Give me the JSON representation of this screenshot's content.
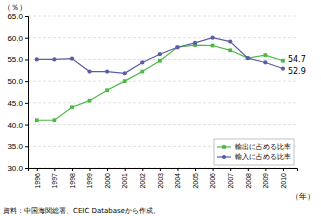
{
  "chart_data": {
    "type": "line",
    "x": [
      1996,
      1997,
      1998,
      1999,
      2000,
      2001,
      2002,
      2003,
      2004,
      2005,
      2006,
      2007,
      2008,
      2009,
      2010
    ],
    "series": [
      {
        "name": "輸出に占める比率",
        "color": "#4db848",
        "marker": "square",
        "values": [
          41.0,
          41.0,
          44.0,
          45.5,
          47.9,
          50.0,
          52.2,
          54.7,
          57.8,
          58.3,
          58.2,
          57.1,
          55.3,
          56.0,
          54.7
        ]
      },
      {
        "name": "輸入に占める比率",
        "color": "#5b5ea6",
        "marker": "circle",
        "values": [
          55.0,
          55.0,
          55.2,
          52.2,
          52.2,
          51.8,
          54.3,
          56.2,
          57.8,
          58.8,
          60.0,
          59.1,
          55.3,
          54.3,
          52.9
        ]
      }
    ],
    "xlim": [
      1995.5,
      2010.8
    ],
    "xticks": [
      1996,
      1997,
      1998,
      1999,
      2000,
      2001,
      2002,
      2003,
      2004,
      2005,
      2006,
      2007,
      2008,
      2009,
      2010
    ],
    "ylim": [
      30.0,
      65.0
    ],
    "yticks": [
      {
        "value": 30,
        "label": "30.0"
      },
      {
        "value": 35,
        "label": "35.0"
      },
      {
        "value": 40,
        "label": "40.0"
      },
      {
        "value": 45,
        "label": "45.0"
      },
      {
        "value": 50,
        "label": "50.0"
      },
      {
        "value": 55,
        "label": "55.0"
      },
      {
        "value": 60,
        "label": "60.0"
      },
      {
        "value": 65,
        "label": "65.0"
      }
    ],
    "y_label": "（％）",
    "x_label": "（年）",
    "annotations": [
      {
        "text": "54.7",
        "x": 2010,
        "y": 54.7
      },
      {
        "text": "52.9",
        "x": 2010,
        "y": 52.9
      }
    ],
    "source": "資料：中国海関総署、CEIC Databaseから作成。",
    "grid": true,
    "legend": "lower right"
  }
}
